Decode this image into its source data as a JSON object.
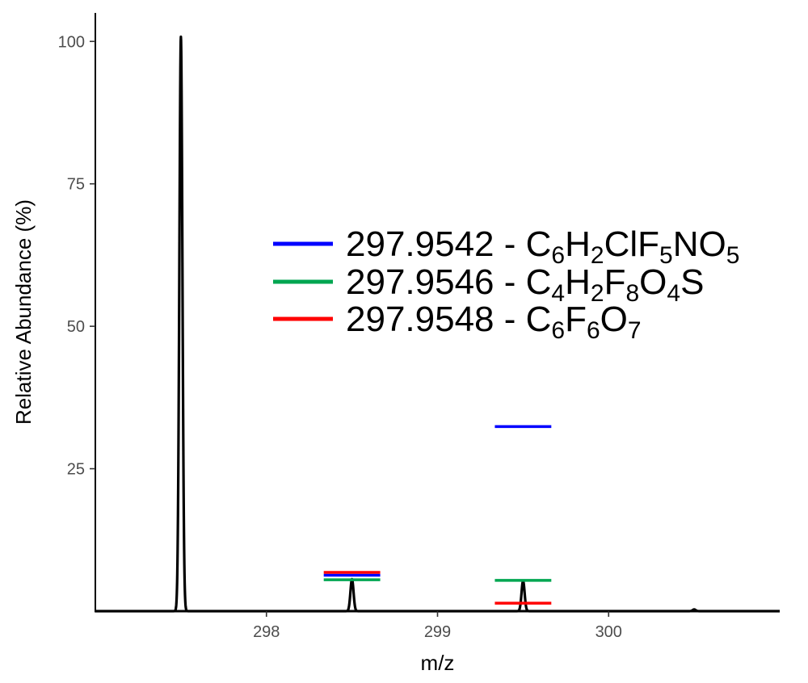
{
  "chart_data": {
    "type": "line",
    "xlabel": "m/z",
    "ylabel": "Relative Abundance (%)",
    "xlim": [
      297.0,
      301.0
    ],
    "ylim": [
      0,
      105
    ],
    "x_ticks": [
      298,
      299,
      300
    ],
    "x_tick_labels": [
      "298",
      "299",
      "300"
    ],
    "y_ticks": [
      25,
      50,
      75,
      100
    ],
    "y_tick_labels": [
      "25",
      "50",
      "75",
      "100"
    ],
    "grid": false,
    "legend_position": "right",
    "spectrum": {
      "color": "#000000",
      "peaks": [
        {
          "mz": 297.5,
          "abundance": 100.8
        },
        {
          "mz": 298.5,
          "abundance": 5.6
        },
        {
          "mz": 299.5,
          "abundance": 5.3
        },
        {
          "mz": 300.5,
          "abundance": 0.3
        }
      ]
    },
    "series": [
      {
        "name": "297.9542 - C6H2ClF5NO5",
        "color": "#0000ff",
        "label_parts": [
          [
            "297.9542 - C",
            ""
          ],
          [
            "6",
            "sub"
          ],
          [
            "H",
            ""
          ],
          [
            "2",
            "sub"
          ],
          [
            "ClF",
            ""
          ],
          [
            "5",
            "sub"
          ],
          [
            "NO",
            ""
          ],
          [
            "5",
            "sub"
          ]
        ],
        "bars": [
          {
            "mz": 298.5,
            "abundance": 6.3
          },
          {
            "mz": 299.5,
            "abundance": 32.4
          }
        ]
      },
      {
        "name": "297.9546 - C4H2F8O4S",
        "color": "#00a651",
        "label_parts": [
          [
            "297.9546 - C",
            ""
          ],
          [
            "4",
            "sub"
          ],
          [
            "H",
            ""
          ],
          [
            "2",
            "sub"
          ],
          [
            "F",
            ""
          ],
          [
            "8",
            "sub"
          ],
          [
            "O",
            ""
          ],
          [
            "4",
            "sub"
          ],
          [
            "S",
            ""
          ]
        ],
        "bars": [
          {
            "mz": 298.5,
            "abundance": 5.5
          },
          {
            "mz": 299.5,
            "abundance": 5.4
          }
        ]
      },
      {
        "name": "297.9548 - C6F6O7",
        "color": "#ff0000",
        "label_parts": [
          [
            "297.9548 - C",
            ""
          ],
          [
            "6",
            "sub"
          ],
          [
            "F",
            ""
          ],
          [
            "6",
            "sub"
          ],
          [
            "O",
            ""
          ],
          [
            "7",
            "sub"
          ]
        ],
        "bars": [
          {
            "mz": 298.5,
            "abundance": 6.8
          },
          {
            "mz": 299.5,
            "abundance": 1.4
          }
        ]
      }
    ]
  }
}
